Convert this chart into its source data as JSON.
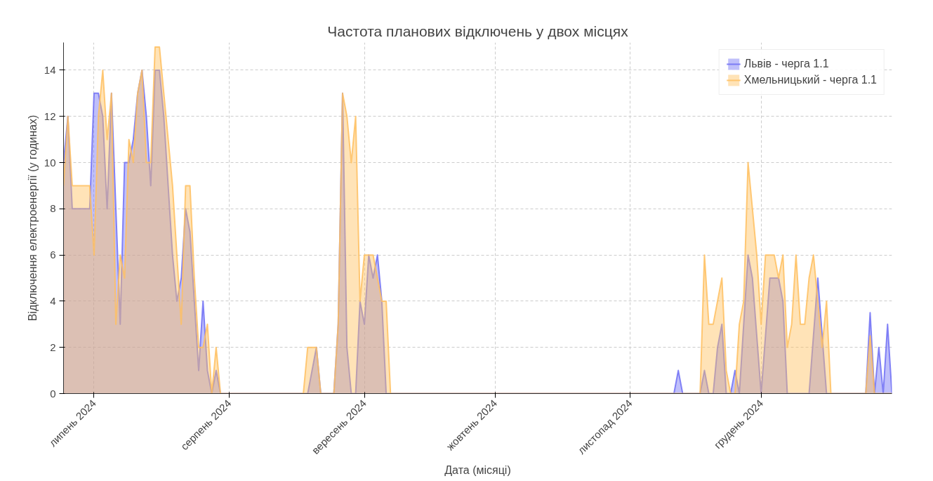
{
  "chart_data": {
    "type": "area",
    "title": "Частота планових відключень у двох місцях",
    "xlabel": "Дата (місяці)",
    "ylabel": "Відключення електроенергії (у годинах)",
    "x": [
      "2024-06-24",
      "2024-06-25",
      "2024-06-26",
      "2024-06-27",
      "2024-06-28",
      "2024-06-29",
      "2024-06-30",
      "2024-07-01",
      "2024-07-02",
      "2024-07-03",
      "2024-07-04",
      "2024-07-05",
      "2024-07-06",
      "2024-07-07",
      "2024-07-08",
      "2024-07-09",
      "2024-07-10",
      "2024-07-11",
      "2024-07-12",
      "2024-07-13",
      "2024-07-14",
      "2024-07-15",
      "2024-07-16",
      "2024-07-17",
      "2024-07-18",
      "2024-07-19",
      "2024-07-20",
      "2024-07-21",
      "2024-07-22",
      "2024-07-23",
      "2024-07-24",
      "2024-07-25",
      "2024-07-26",
      "2024-07-27",
      "2024-07-28",
      "2024-07-29",
      "2024-07-30",
      "2024-07-31",
      "2024-08-01",
      "2024-08-02",
      "2024-08-03",
      "2024-08-04",
      "2024-08-05",
      "2024-08-06",
      "2024-08-07",
      "2024-08-08",
      "2024-08-09",
      "2024-08-10",
      "2024-08-11",
      "2024-08-12",
      "2024-08-13",
      "2024-08-14",
      "2024-08-15",
      "2024-08-16",
      "2024-08-17",
      "2024-08-18",
      "2024-08-19",
      "2024-08-20",
      "2024-08-21",
      "2024-08-22",
      "2024-08-23",
      "2024-08-24",
      "2024-08-25",
      "2024-08-26",
      "2024-08-27",
      "2024-08-28",
      "2024-08-29",
      "2024-08-30",
      "2024-08-31",
      "2024-09-01",
      "2024-09-02",
      "2024-09-03",
      "2024-09-04",
      "2024-09-05",
      "2024-09-06",
      "2024-09-07",
      "2024-09-08",
      "2024-09-09",
      "2024-09-10",
      "2024-09-11",
      "2024-09-12",
      "2024-09-13",
      "2024-09-14",
      "2024-09-15",
      "2024-09-16",
      "2024-09-17",
      "2024-09-18",
      "2024-09-19",
      "2024-09-20",
      "2024-09-21",
      "2024-09-22",
      "2024-09-23",
      "2024-09-24",
      "2024-09-25",
      "2024-09-26",
      "2024-09-27",
      "2024-09-28",
      "2024-09-29",
      "2024-09-30",
      "2024-10-01",
      "2024-10-02",
      "2024-10-03",
      "2024-10-04",
      "2024-10-05",
      "2024-10-06",
      "2024-10-07",
      "2024-10-08",
      "2024-10-09",
      "2024-10-10",
      "2024-10-11",
      "2024-10-12",
      "2024-10-13",
      "2024-10-14",
      "2024-10-15",
      "2024-10-16",
      "2024-10-17",
      "2024-10-18",
      "2024-10-19",
      "2024-10-20",
      "2024-10-21",
      "2024-10-22",
      "2024-10-23",
      "2024-10-24",
      "2024-10-25",
      "2024-10-26",
      "2024-10-27",
      "2024-10-28",
      "2024-10-29",
      "2024-10-30",
      "2024-10-31",
      "2024-11-01",
      "2024-11-02",
      "2024-11-03",
      "2024-11-04",
      "2024-11-05",
      "2024-11-06",
      "2024-11-07",
      "2024-11-08",
      "2024-11-09",
      "2024-11-10",
      "2024-11-11",
      "2024-11-12",
      "2024-11-13",
      "2024-11-14",
      "2024-11-15",
      "2024-11-16",
      "2024-11-17",
      "2024-11-18",
      "2024-11-19",
      "2024-11-20",
      "2024-11-21",
      "2024-11-22",
      "2024-11-23",
      "2024-11-24",
      "2024-11-25",
      "2024-11-26",
      "2024-11-27",
      "2024-11-28",
      "2024-11-29",
      "2024-11-30",
      "2024-12-01",
      "2024-12-02",
      "2024-12-03",
      "2024-12-04",
      "2024-12-05",
      "2024-12-06",
      "2024-12-07",
      "2024-12-08",
      "2024-12-09",
      "2024-12-10",
      "2024-12-11",
      "2024-12-12",
      "2024-12-13",
      "2024-12-14",
      "2024-12-15",
      "2024-12-16",
      "2024-12-17",
      "2024-12-18",
      "2024-12-19",
      "2024-12-20",
      "2024-12-21",
      "2024-12-22",
      "2024-12-23",
      "2024-12-24",
      "2024-12-25",
      "2024-12-26",
      "2024-12-27",
      "2024-12-28",
      "2024-12-29",
      "2024-12-30",
      "2024-12-31"
    ],
    "series": [
      {
        "name": "Львів - черга 1.1",
        "color": "#7070f5",
        "values": [
          10,
          12,
          8,
          8,
          8,
          8,
          8,
          13,
          13,
          12,
          8,
          13,
          8,
          3,
          10,
          10,
          11,
          13,
          14,
          12,
          9,
          14,
          14,
          12,
          9,
          6,
          4,
          5,
          8,
          7,
          4,
          1,
          4,
          1,
          0,
          1,
          0,
          0,
          0,
          0,
          0,
          0,
          0,
          0,
          0,
          0,
          0,
          0,
          0,
          0,
          0,
          0,
          0,
          0,
          0,
          0,
          0,
          1,
          2,
          0,
          0,
          0,
          0,
          3,
          13,
          2,
          0,
          0,
          4,
          3,
          6,
          5,
          6,
          4,
          0,
          0,
          0,
          0,
          0,
          0,
          0,
          0,
          0,
          0,
          0,
          0,
          0,
          0,
          0,
          0,
          0,
          0,
          0,
          0,
          0,
          0,
          0,
          0,
          0,
          0,
          0,
          0,
          0,
          0,
          0,
          0,
          0,
          0,
          0,
          0,
          0,
          0,
          0,
          0,
          0,
          0,
          0,
          0,
          0,
          0,
          0,
          0,
          0,
          0,
          0,
          0,
          0,
          0,
          0,
          0,
          0,
          0,
          0,
          0,
          0,
          0,
          0,
          0,
          0,
          0,
          0,
          1,
          0,
          0,
          0,
          0,
          0,
          1,
          0,
          0,
          2,
          3,
          0,
          0,
          1,
          0,
          3,
          6,
          5,
          2.5,
          0,
          2.5,
          5,
          5,
          5,
          4,
          0,
          0,
          0,
          0,
          0,
          0,
          2.5,
          5,
          2.5,
          0,
          0,
          0,
          0,
          0,
          0,
          0,
          0,
          0,
          0,
          3.5,
          0,
          2,
          0,
          3,
          0
        ]
      },
      {
        "name": "Хмельницький - черга 1.1",
        "color": "#ffc060",
        "values": [
          9,
          12,
          9,
          9,
          9,
          9,
          9,
          6,
          12,
          14,
          11,
          13,
          3,
          6,
          5,
          11,
          10,
          13,
          14,
          10,
          10,
          15,
          15,
          13,
          11,
          9,
          6,
          3,
          9,
          9,
          5,
          2,
          2,
          3,
          0,
          2,
          0,
          0,
          0,
          0,
          0,
          0,
          0,
          0,
          0,
          0,
          0,
          0,
          0,
          0,
          0,
          0,
          0,
          0,
          0,
          0,
          2,
          2,
          2,
          0,
          0,
          0,
          0,
          3,
          13,
          12,
          10,
          12,
          4,
          6,
          6,
          6,
          5,
          4,
          4,
          0,
          0,
          0,
          0,
          0,
          0,
          0,
          0,
          0,
          0,
          0,
          0,
          0,
          0,
          0,
          0,
          0,
          0,
          0,
          0,
          0,
          0,
          0,
          0,
          0,
          0,
          0,
          0,
          0,
          0,
          0,
          0,
          0,
          0,
          0,
          0,
          0,
          0,
          0,
          0,
          0,
          0,
          0,
          0,
          0,
          0,
          0,
          0,
          0,
          0,
          0,
          0,
          0,
          0,
          0,
          0,
          0,
          0,
          0,
          0,
          0,
          0,
          0,
          0,
          0,
          0,
          0,
          0,
          0,
          0,
          0,
          0,
          6,
          3,
          3,
          4,
          5,
          1,
          0,
          0,
          3,
          4,
          10,
          8,
          6,
          3,
          6,
          6,
          6,
          5,
          6,
          2,
          3,
          6,
          3,
          3,
          5,
          6,
          4,
          2,
          4,
          0,
          0,
          0,
          0,
          0,
          0,
          0,
          0,
          0,
          2.5,
          0,
          0,
          0,
          0,
          0
        ]
      }
    ],
    "xlim": [
      "2024-06-24",
      "2024-12-31"
    ],
    "xticks": [
      {
        "value": "2024-07-01",
        "label": "липень 2024"
      },
      {
        "value": "2024-08-01",
        "label": "серпень 2024"
      },
      {
        "value": "2024-09-01",
        "label": "вересень 2024"
      },
      {
        "value": "2024-10-01",
        "label": "жовтень 2024"
      },
      {
        "value": "2024-11-01",
        "label": "листопад 2024"
      },
      {
        "value": "2024-12-01",
        "label": "грудень 2024"
      }
    ],
    "ylim": [
      0,
      15.2
    ],
    "yticks": [
      0,
      2,
      4,
      6,
      8,
      10,
      12,
      14
    ],
    "grid": true,
    "legend": "top right",
    "marker": "none",
    "line_style": "solid"
  }
}
